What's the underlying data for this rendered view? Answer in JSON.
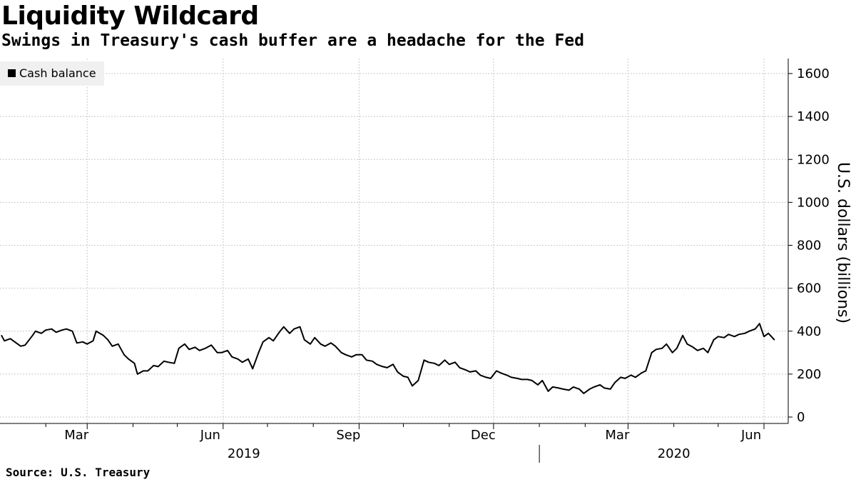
{
  "header": {
    "title": "Liquidity Wildcard",
    "subtitle": "Swings in Treasury's cash buffer are a headache for the Fed"
  },
  "footer": {
    "source": "Source: U.S. Treasury"
  },
  "colors": {
    "line": "#000000",
    "grid": "#c8c8c8",
    "legend_bg": "#f0f0f0"
  },
  "chart_data": {
    "type": "line",
    "title": "Liquidity Wildcard",
    "subtitle": "Swings in Treasury's cash buffer are a headache for the Fed",
    "xlabel": "",
    "ylabel": "U.S. dollars (billions)",
    "ylim": [
      0,
      1650
    ],
    "xlim": [
      "2019-01-01",
      "2020-06-15"
    ],
    "y_ticks": [
      0,
      200,
      400,
      600,
      800,
      1000,
      1200,
      1400,
      1600
    ],
    "x_tick_labels": [
      {
        "date": "2019-03-01",
        "label": "Mar"
      },
      {
        "date": "2019-06-01",
        "label": "Jun"
      },
      {
        "date": "2019-09-01",
        "label": "Sep"
      },
      {
        "date": "2019-12-01",
        "label": "Dec"
      },
      {
        "date": "2020-03-01",
        "label": "Mar"
      },
      {
        "date": "2020-06-01",
        "label": "Jun"
      }
    ],
    "x_minor_ticks": [
      "2019-02-01",
      "2019-04-01",
      "2019-05-01",
      "2019-07-01",
      "2019-08-01",
      "2019-10-01",
      "2019-11-01",
      "2020-01-01",
      "2020-02-01",
      "2020-04-01",
      "2020-05-01"
    ],
    "year_labels": [
      {
        "date": "2019-06-15",
        "label": "2019"
      },
      {
        "date": "2020-04-01",
        "label": "2020"
      }
    ],
    "year_separator": "2020-01-01",
    "grid": true,
    "legend": "top-left",
    "series": [
      {
        "name": "Cash balance",
        "points": [
          [
            "2019-01-02",
            380
          ],
          [
            "2019-01-04",
            355
          ],
          [
            "2019-01-08",
            365
          ],
          [
            "2019-01-11",
            350
          ],
          [
            "2019-01-15",
            330
          ],
          [
            "2019-01-18",
            335
          ],
          [
            "2019-01-23",
            380
          ],
          [
            "2019-01-25",
            400
          ],
          [
            "2019-01-29",
            390
          ],
          [
            "2019-02-01",
            405
          ],
          [
            "2019-02-05",
            410
          ],
          [
            "2019-02-08",
            395
          ],
          [
            "2019-02-12",
            405
          ],
          [
            "2019-02-15",
            410
          ],
          [
            "2019-02-19",
            400
          ],
          [
            "2019-02-22",
            345
          ],
          [
            "2019-02-26",
            350
          ],
          [
            "2019-03-01",
            340
          ],
          [
            "2019-03-05",
            355
          ],
          [
            "2019-03-07",
            400
          ],
          [
            "2019-03-12",
            380
          ],
          [
            "2019-03-15",
            360
          ],
          [
            "2019-03-18",
            330
          ],
          [
            "2019-03-22",
            340
          ],
          [
            "2019-03-26",
            290
          ],
          [
            "2019-03-29",
            270
          ],
          [
            "2019-04-02",
            250
          ],
          [
            "2019-04-04",
            200
          ],
          [
            "2019-04-08",
            215
          ],
          [
            "2019-04-11",
            215
          ],
          [
            "2019-04-15",
            240
          ],
          [
            "2019-04-18",
            235
          ],
          [
            "2019-04-22",
            260
          ],
          [
            "2019-04-25",
            255
          ],
          [
            "2019-04-29",
            250
          ],
          [
            "2019-05-02",
            320
          ],
          [
            "2019-05-06",
            340
          ],
          [
            "2019-05-09",
            315
          ],
          [
            "2019-05-13",
            325
          ],
          [
            "2019-05-16",
            310
          ],
          [
            "2019-05-20",
            320
          ],
          [
            "2019-05-24",
            335
          ],
          [
            "2019-05-28",
            300
          ],
          [
            "2019-05-31",
            300
          ],
          [
            "2019-06-04",
            310
          ],
          [
            "2019-06-07",
            280
          ],
          [
            "2019-06-11",
            270
          ],
          [
            "2019-06-14",
            255
          ],
          [
            "2019-06-18",
            270
          ],
          [
            "2019-06-21",
            225
          ],
          [
            "2019-06-25",
            300
          ],
          [
            "2019-06-28",
            350
          ],
          [
            "2019-07-02",
            370
          ],
          [
            "2019-07-05",
            355
          ],
          [
            "2019-07-09",
            395
          ],
          [
            "2019-07-12",
            420
          ],
          [
            "2019-07-16",
            390
          ],
          [
            "2019-07-19",
            410
          ],
          [
            "2019-07-23",
            420
          ],
          [
            "2019-07-26",
            360
          ],
          [
            "2019-07-30",
            340
          ],
          [
            "2019-08-02",
            370
          ],
          [
            "2019-08-06",
            340
          ],
          [
            "2019-08-09",
            330
          ],
          [
            "2019-08-13",
            345
          ],
          [
            "2019-08-16",
            330
          ],
          [
            "2019-08-20",
            300
          ],
          [
            "2019-08-23",
            290
          ],
          [
            "2019-08-27",
            280
          ],
          [
            "2019-08-30",
            290
          ],
          [
            "2019-09-03",
            290
          ],
          [
            "2019-09-06",
            265
          ],
          [
            "2019-09-10",
            260
          ],
          [
            "2019-09-13",
            245
          ],
          [
            "2019-09-17",
            235
          ],
          [
            "2019-09-20",
            230
          ],
          [
            "2019-09-24",
            245
          ],
          [
            "2019-09-27",
            210
          ],
          [
            "2019-10-01",
            190
          ],
          [
            "2019-10-04",
            185
          ],
          [
            "2019-10-07",
            145
          ],
          [
            "2019-10-11",
            170
          ],
          [
            "2019-10-15",
            265
          ],
          [
            "2019-10-18",
            255
          ],
          [
            "2019-10-22",
            250
          ],
          [
            "2019-10-25",
            240
          ],
          [
            "2019-10-29",
            265
          ],
          [
            "2019-11-01",
            245
          ],
          [
            "2019-11-05",
            255
          ],
          [
            "2019-11-08",
            230
          ],
          [
            "2019-11-12",
            220
          ],
          [
            "2019-11-15",
            210
          ],
          [
            "2019-11-19",
            215
          ],
          [
            "2019-11-22",
            195
          ],
          [
            "2019-11-26",
            185
          ],
          [
            "2019-11-29",
            180
          ],
          [
            "2019-12-03",
            215
          ],
          [
            "2019-12-06",
            205
          ],
          [
            "2019-12-10",
            195
          ],
          [
            "2019-12-13",
            185
          ],
          [
            "2019-12-17",
            180
          ],
          [
            "2019-12-20",
            175
          ],
          [
            "2019-12-24",
            175
          ],
          [
            "2019-12-27",
            170
          ],
          [
            "2019-12-31",
            150
          ],
          [
            "2020-01-03",
            170
          ],
          [
            "2020-01-07",
            120
          ],
          [
            "2020-01-10",
            140
          ],
          [
            "2020-01-14",
            135
          ],
          [
            "2020-01-17",
            130
          ],
          [
            "2020-01-21",
            125
          ],
          [
            "2020-01-24",
            140
          ],
          [
            "2020-01-28",
            130
          ],
          [
            "2020-01-31",
            110
          ],
          [
            "2020-02-04",
            130
          ],
          [
            "2020-02-07",
            140
          ],
          [
            "2020-02-11",
            150
          ],
          [
            "2020-02-14",
            135
          ],
          [
            "2020-02-18",
            130
          ],
          [
            "2020-02-21",
            160
          ],
          [
            "2020-02-25",
            185
          ],
          [
            "2020-02-28",
            180
          ],
          [
            "2020-03-03",
            195
          ],
          [
            "2020-03-06",
            185
          ],
          [
            "2020-03-10",
            205
          ],
          [
            "2020-03-13",
            215
          ],
          [
            "2020-03-17",
            300
          ],
          [
            "2020-03-20",
            315
          ],
          [
            "2020-03-24",
            320
          ],
          [
            "2020-03-27",
            340
          ],
          [
            "2020-03-31",
            300
          ],
          [
            "2020-04-03",
            320
          ],
          [
            "2020-04-07",
            380
          ],
          [
            "2020-04-10",
            340
          ],
          [
            "2020-04-14",
            325
          ],
          [
            "2020-04-17",
            310
          ],
          [
            "2020-04-21",
            320
          ],
          [
            "2020-04-24",
            300
          ],
          [
            "2020-04-28",
            360
          ],
          [
            "2020-05-01",
            375
          ],
          [
            "2020-05-05",
            370
          ],
          [
            "2020-05-08",
            385
          ],
          [
            "2020-05-12",
            375
          ],
          [
            "2020-05-15",
            385
          ],
          [
            "2020-05-19",
            390
          ],
          [
            "2020-05-22",
            400
          ],
          [
            "2020-05-26",
            410
          ],
          [
            "2020-05-29",
            435
          ],
          [
            "2020-06-01",
            375
          ],
          [
            "2020-06-04",
            390
          ],
          [
            "2020-06-08",
            360
          ]
        ]
      }
    ]
  },
  "legend": {
    "items": [
      {
        "label": "Cash balance",
        "color": "#000000"
      }
    ]
  }
}
